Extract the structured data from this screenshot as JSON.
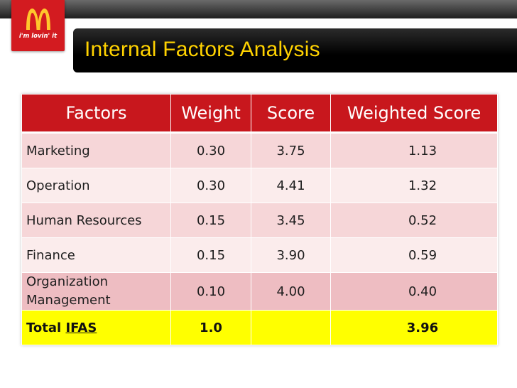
{
  "brand": {
    "tagline": "i'm lovin' it",
    "logo_icon": "golden-arches-icon",
    "accent": "#c8171d",
    "logo_color": "#ffc72c"
  },
  "slide": {
    "title": "Internal Factors Analysis",
    "title_color": "#ffd200"
  },
  "table": {
    "headers": [
      "Factors",
      "Weight",
      "Score",
      "Weighted Score"
    ],
    "rows": [
      {
        "factor": "Marketing",
        "weight": "0.30",
        "score": "3.75",
        "weighted": "1.13"
      },
      {
        "factor": "Operation",
        "weight": "0.30",
        "score": "4.41",
        "weighted": "1.32"
      },
      {
        "factor": "Human Resources",
        "weight": "0.15",
        "score": "3.45",
        "weighted": "0.52"
      },
      {
        "factor": "Finance",
        "weight": "0.15",
        "score": "3.90",
        "weighted": "0.59"
      },
      {
        "factor": "Organization Management",
        "weight": "0.10",
        "score": "4.00",
        "weighted": "0.40"
      }
    ],
    "total": {
      "label": "Total",
      "label_emphasis": "IFAS",
      "weight": "1.0",
      "score": "",
      "weighted": "3.96"
    }
  }
}
